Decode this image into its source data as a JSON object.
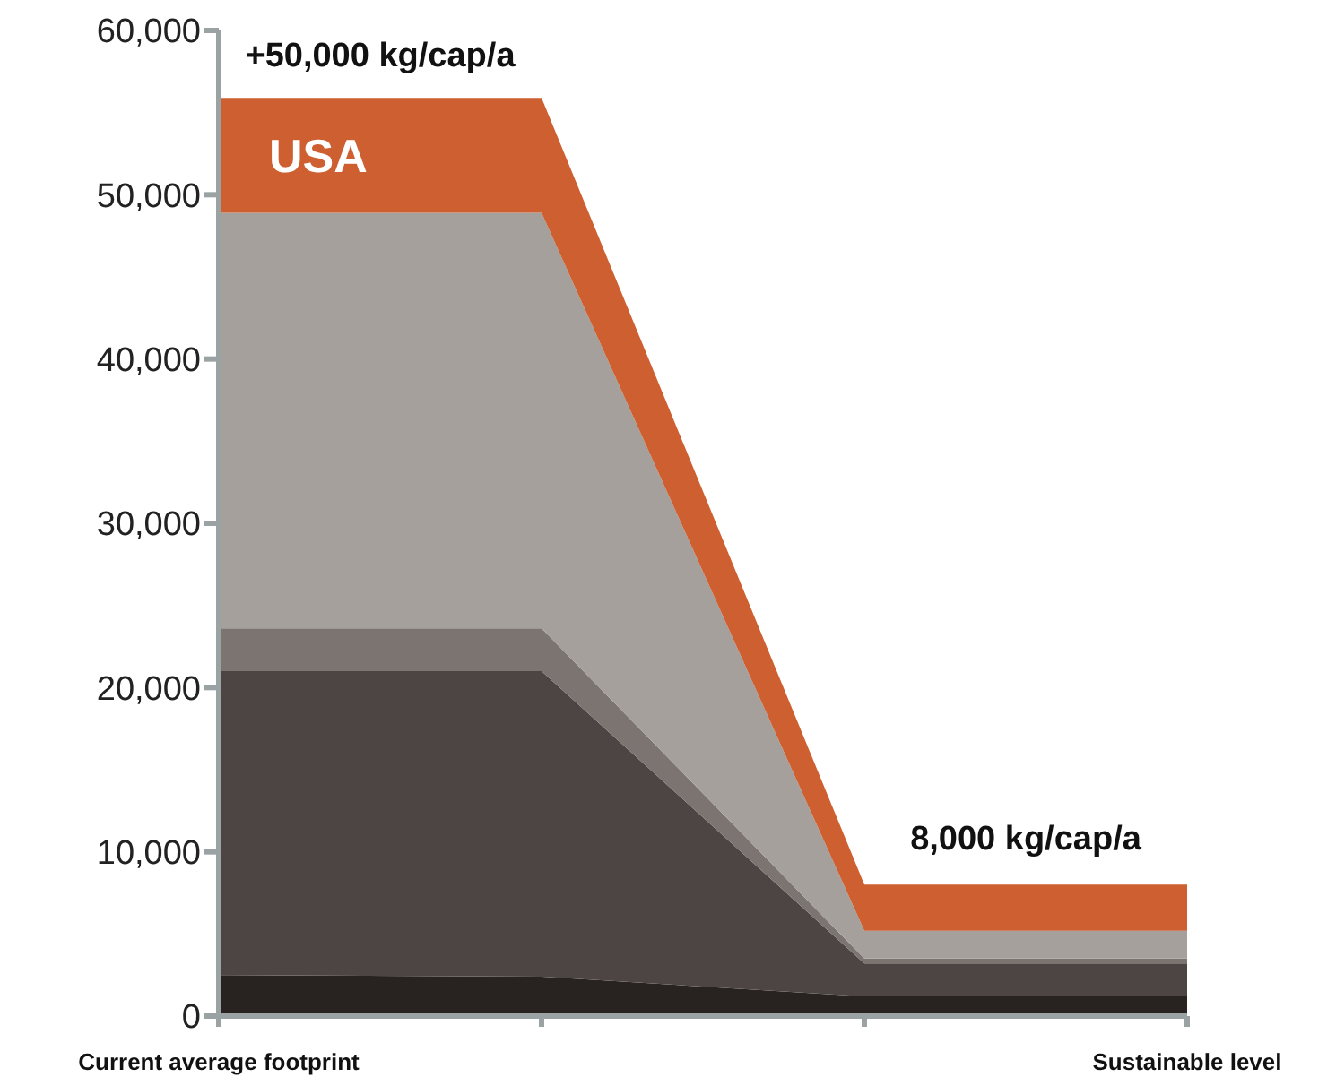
{
  "chart_data": {
    "type": "area",
    "stacked": true,
    "categories": [
      "Current average footprint",
      null,
      null,
      "Sustainable level"
    ],
    "series": [
      {
        "color": "#282221",
        "values": [
          2500,
          2400,
          1200,
          1200
        ]
      },
      {
        "color": "#4d4543",
        "values": [
          18500,
          18600,
          2000,
          2000
        ]
      },
      {
        "color": "#7b7471",
        "values": [
          2600,
          2600,
          300,
          300
        ]
      },
      {
        "color": "#a5a09c",
        "values": [
          25300,
          25300,
          1700,
          1700
        ]
      },
      {
        "name": "USA",
        "color": "#cd5f30",
        "values": [
          7000,
          7000,
          2800,
          2800
        ]
      }
    ],
    "ylim": [
      0,
      60000
    ],
    "yticks": [
      0,
      {
        "value": 10000,
        "label": "10,000"
      },
      {
        "value": 20000,
        "label": "20,000"
      },
      {
        "value": 30000,
        "label": "30,000"
      },
      {
        "value": 40000,
        "label": "40,000"
      },
      {
        "value": 50000,
        "label": "50,000"
      },
      {
        "value": 60000,
        "label": "60,000"
      }
    ],
    "annotations": [
      "+50,000 kg/cap/a",
      "8,000 kg/cap/a"
    ]
  }
}
